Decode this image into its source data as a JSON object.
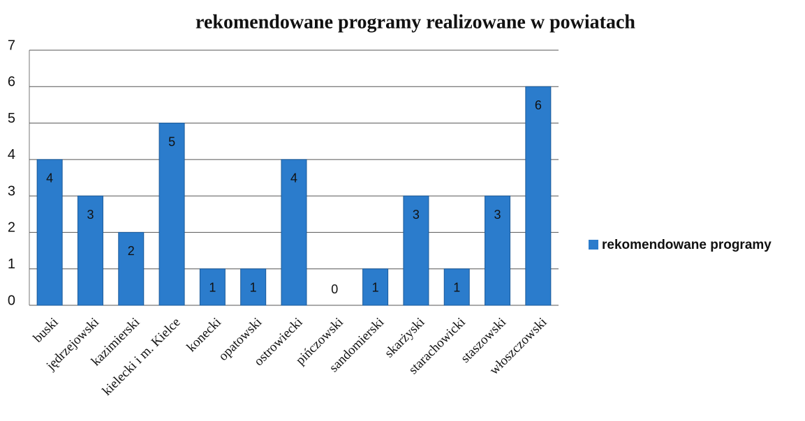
{
  "chart_data": {
    "type": "bar",
    "title": "rekomendowane programy realizowane w powiatach",
    "categories": [
      "buski",
      "jędrzejowski",
      "kazimierski",
      "kielecki i m. Kielce",
      "konecki",
      "opatowski",
      "ostrowiecki",
      "pińczowski",
      "sandomierski",
      "skarżyski",
      "starachowicki",
      "staszowski",
      "włoszczowski"
    ],
    "series": [
      {
        "name": "rekomendowane programy",
        "color": "#2b7ccc",
        "values": [
          4,
          3,
          2,
          5,
          1,
          1,
          4,
          0,
          1,
          3,
          1,
          3,
          6
        ]
      }
    ],
    "ylim": [
      0,
      7
    ],
    "yticks": [
      0,
      1,
      2,
      3,
      4,
      5,
      6,
      7
    ],
    "grid": true,
    "legend": "right"
  }
}
